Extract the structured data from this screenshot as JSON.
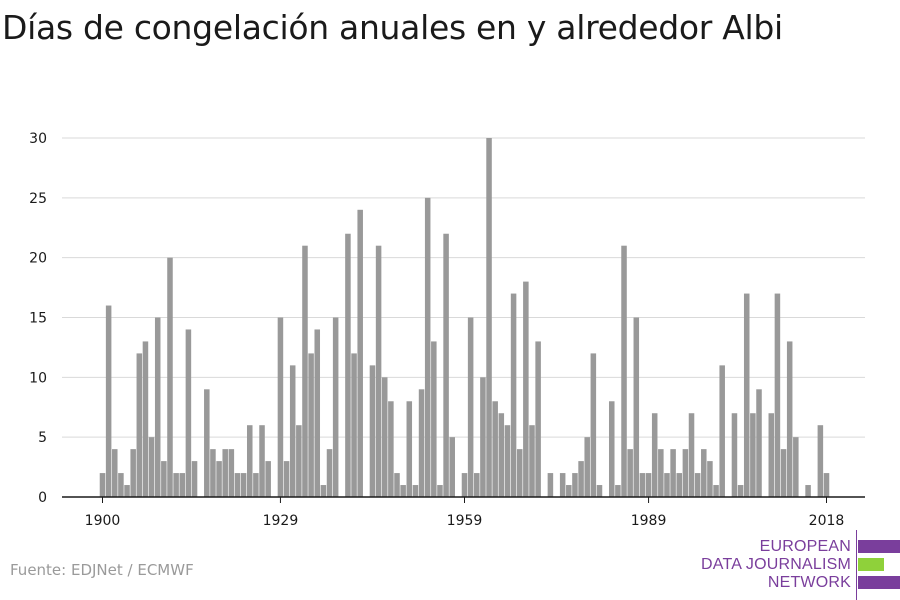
{
  "title": "Días de congelación anuales en y alrededor Albi",
  "source": "Fuente: EDJNet / ECMWF",
  "logo": {
    "lines": [
      "EUROPEAN",
      "DATA JOURNALISM",
      "NETWORK"
    ],
    "colors": {
      "purple": "#7a3e9c",
      "green": "#8fd13a"
    }
  },
  "chart_data": {
    "type": "bar",
    "title": "Días de congelación anuales en y alrededor Albi",
    "xlabel": "",
    "ylabel": "",
    "ylim": [
      0,
      30
    ],
    "yticks": [
      0,
      5,
      10,
      15,
      20,
      25,
      30
    ],
    "xticks": [
      1900,
      1929,
      1959,
      1989,
      2018
    ],
    "grid": true,
    "bar_color": "#999999",
    "x": [
      1900,
      1901,
      1902,
      1903,
      1904,
      1905,
      1906,
      1907,
      1908,
      1909,
      1910,
      1911,
      1912,
      1913,
      1914,
      1915,
      1916,
      1917,
      1918,
      1919,
      1920,
      1921,
      1922,
      1923,
      1924,
      1925,
      1926,
      1927,
      1928,
      1929,
      1930,
      1931,
      1932,
      1933,
      1934,
      1935,
      1936,
      1937,
      1938,
      1939,
      1940,
      1941,
      1942,
      1943,
      1944,
      1945,
      1946,
      1947,
      1948,
      1949,
      1950,
      1951,
      1952,
      1953,
      1954,
      1955,
      1956,
      1957,
      1958,
      1959,
      1960,
      1961,
      1962,
      1963,
      1964,
      1965,
      1966,
      1967,
      1968,
      1969,
      1970,
      1971,
      1972,
      1973,
      1974,
      1975,
      1976,
      1977,
      1978,
      1979,
      1980,
      1981,
      1982,
      1983,
      1984,
      1985,
      1986,
      1987,
      1988,
      1989,
      1990,
      1991,
      1992,
      1993,
      1994,
      1995,
      1996,
      1997,
      1998,
      1999,
      2000,
      2001,
      2002,
      2003,
      2004,
      2005,
      2006,
      2007,
      2008,
      2009,
      2010,
      2011,
      2012,
      2013,
      2014,
      2015,
      2016,
      2017,
      2018,
      2019
    ],
    "values": [
      2,
      16,
      4,
      2,
      1,
      4,
      12,
      13,
      5,
      15,
      3,
      20,
      2,
      2,
      14,
      3,
      0,
      9,
      4,
      3,
      4,
      4,
      2,
      2,
      6,
      2,
      6,
      3,
      0,
      15,
      3,
      11,
      6,
      21,
      12,
      14,
      1,
      4,
      15,
      0,
      22,
      12,
      24,
      0,
      11,
      21,
      10,
      8,
      2,
      1,
      8,
      1,
      9,
      25,
      13,
      1,
      22,
      5,
      0,
      2,
      15,
      2,
      10,
      30,
      8,
      7,
      6,
      17,
      4,
      18,
      6,
      13,
      0,
      2,
      0,
      2,
      1,
      2,
      3,
      5,
      12,
      1,
      0,
      8,
      1,
      21,
      4,
      15,
      2,
      2,
      7,
      4,
      2,
      4,
      2,
      4,
      7,
      2,
      4,
      3,
      1,
      11,
      0,
      7,
      1,
      17,
      7,
      9,
      0,
      7,
      17,
      4,
      13,
      5,
      0,
      1,
      0,
      6,
      2,
      0
    ]
  }
}
